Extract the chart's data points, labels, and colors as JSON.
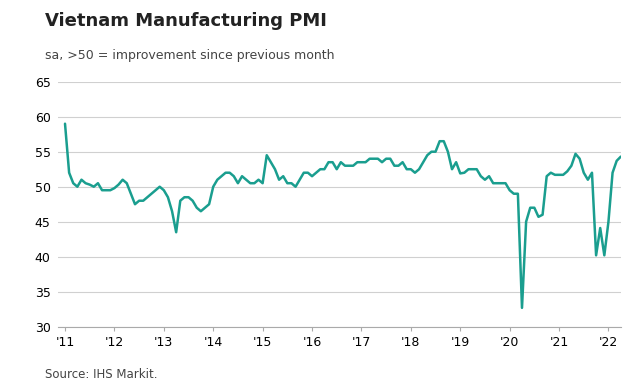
{
  "title": "Vietnam Manufacturing PMI",
  "subtitle": "sa, >50 = improvement since previous month",
  "source": "Source: IHS Markit.",
  "line_color": "#1a9e8f",
  "background_color": "#ffffff",
  "ylim": [
    30,
    65
  ],
  "yticks": [
    30,
    35,
    40,
    45,
    50,
    55,
    60,
    65
  ],
  "x_labels": [
    "'11",
    "'12",
    "'13",
    "'14",
    "'15",
    "'16",
    "'17",
    "'18",
    "'19",
    "'20",
    "'21",
    "'22"
  ],
  "x_tick_positions": [
    2011,
    2012,
    2013,
    2014,
    2015,
    2016,
    2017,
    2018,
    2019,
    2020,
    2021,
    2022
  ],
  "start_year": 2011.0,
  "pmi_data": [
    59.0,
    52.0,
    50.5,
    50.0,
    51.0,
    50.5,
    50.3,
    50.0,
    50.5,
    49.5,
    49.5,
    49.5,
    49.8,
    50.3,
    51.0,
    50.5,
    49.0,
    47.5,
    48.0,
    48.0,
    48.5,
    49.0,
    49.5,
    50.0,
    49.5,
    48.5,
    46.5,
    43.5,
    48.0,
    48.5,
    48.5,
    48.0,
    47.0,
    46.5,
    47.0,
    47.5,
    50.0,
    51.0,
    51.5,
    52.0,
    52.0,
    51.5,
    50.5,
    51.5,
    51.0,
    50.5,
    50.5,
    51.0,
    50.5,
    54.5,
    53.5,
    52.5,
    51.0,
    51.5,
    50.5,
    50.5,
    50.0,
    51.0,
    52.0,
    52.0,
    51.5,
    52.0,
    52.5,
    52.5,
    53.5,
    53.5,
    52.5,
    53.5,
    53.0,
    53.0,
    53.0,
    53.5,
    53.5,
    53.5,
    54.0,
    54.0,
    54.0,
    53.5,
    54.0,
    54.0,
    53.0,
    53.0,
    53.5,
    52.5,
    52.5,
    52.0,
    52.5,
    53.5,
    54.5,
    55.0,
    55.0,
    56.5,
    56.5,
    55.0,
    52.5,
    53.5,
    51.9,
    52.0,
    52.5,
    52.5,
    52.5,
    51.5,
    51.0,
    51.5,
    50.5,
    50.5,
    50.5,
    50.5,
    49.5,
    49.0,
    49.0,
    32.7,
    45.0,
    47.0,
    47.0,
    45.7,
    46.0,
    51.5,
    52.0,
    51.7,
    51.7,
    51.7,
    52.2,
    53.0,
    54.7,
    54.0,
    52.0,
    51.0,
    52.0,
    40.2,
    44.1,
    40.2,
    45.0,
    52.0,
    53.7,
    54.3
  ]
}
